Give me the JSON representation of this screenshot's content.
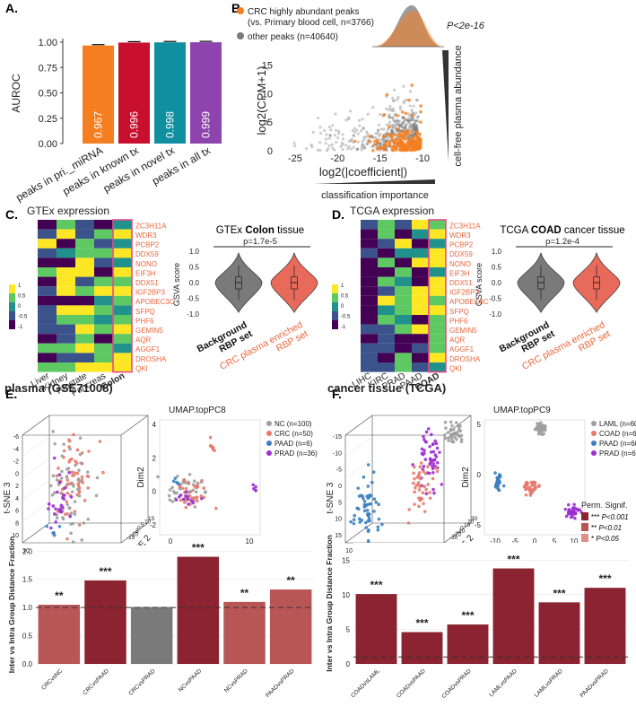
{
  "panels": {
    "A": "A.",
    "B": "B.",
    "C": "C.",
    "D": "D.",
    "E": "E.",
    "F": "F."
  },
  "colors": {
    "orange": "#f47e20",
    "red": "#c8102e",
    "teal": "#0f8fa0",
    "purple": "#8e44ad",
    "salmon": "#e86a5b",
    "gray": "#7a7a7a",
    "dark_red": "#8b2330",
    "mid_red": "#b85656",
    "light_red": "#e0908a",
    "label_orange": "#e8663d",
    "nc": "#9e9e9e",
    "crc": "#e67a6b",
    "paad": "#3a7fc0",
    "prad": "#9b2fd0"
  },
  "chart_data": [
    {
      "id": "A",
      "type": "bar",
      "ylabel": "AUROC",
      "ylim": [
        0,
        1
      ],
      "yticks": [
        "0.00",
        "0.25",
        "0.50",
        "0.75",
        "1.00"
      ],
      "categories": [
        "peaks in pri._miRNA",
        "peaks in known tx",
        "peaks in novel tx",
        "peaks in all tx"
      ],
      "values": [
        0.967,
        0.996,
        0.998,
        0.999
      ],
      "labels": [
        "0.967",
        "0.996",
        "0.998",
        "0.999"
      ]
    },
    {
      "id": "B",
      "type": "scatter",
      "legend": [
        "CRC highly abundant peaks",
        "(vs. Primary blood cell, n=3766)",
        "other peaks (n=40640)"
      ],
      "pvalue": "P<2e-16",
      "xlabel": "log2(|coefficient|)",
      "ylabel": "log2(CPM+1)",
      "xticks": [
        "-25",
        "-20",
        "-15",
        "-10"
      ],
      "yticks": [
        "0",
        "5",
        "10",
        "15"
      ],
      "xlim": [
        -27,
        -8
      ],
      "ylim": [
        0,
        17
      ],
      "side_label": "cell-free plasma abundance",
      "bottom_label": "classification importance"
    },
    {
      "id": "C_heat",
      "type": "heatmap",
      "title": "GTEx expression",
      "columns": [
        "Liver",
        "Kidney",
        "Prostate",
        "Pancreas",
        "Colon"
      ],
      "highlight_column": "Colon",
      "rows": [
        "ZC3H11A",
        "WDR3",
        "PCBP2",
        "DDX59",
        "NONO",
        "EIF3H",
        "DDX51",
        "IGF2BP3",
        "APOBEC3C",
        "SFPQ",
        "PHF6",
        "GEMIN5",
        "AQR",
        "AGGF1",
        "DROSHA",
        "QKI"
      ],
      "legend_ticks": [
        "1",
        "0.5",
        "0",
        "-0.5",
        "-1"
      ]
    },
    {
      "id": "C_violin",
      "type": "violin",
      "title_prefix": "GTEx ",
      "title_bold": "Colon",
      "title_suffix": " tissue",
      "ylabel": "GSVA score",
      "yticks": [
        "-1.0",
        "-0.5",
        "0.0",
        "0.5",
        "1.0"
      ],
      "pvalue": "p=1.7e-5",
      "groups": [
        "Background RBP set",
        "CRC plasma enriched RBP set"
      ],
      "group_lines": [
        [
          "Background",
          "RBP set"
        ],
        [
          "CRC plasma enriched",
          "RBP set"
        ]
      ]
    },
    {
      "id": "D_heat",
      "type": "heatmap",
      "title": "TCGA expression",
      "columns": [
        "LIHC",
        "KIRC",
        "PRAD",
        "PAAD",
        "COAD"
      ],
      "highlight_column": "COAD",
      "rows": [
        "ZC3H11A",
        "WDR3",
        "PCBP2",
        "DDX59",
        "NONO",
        "EIF3H",
        "DDX51",
        "IGF2BP3",
        "APOBEC3C",
        "SFPQ",
        "PHF6",
        "GEMIN5",
        "AQR",
        "AGGF1",
        "DROSHA",
        "QKI"
      ],
      "legend_ticks": [
        "1",
        "0.5",
        "0",
        "-0.5",
        "-1"
      ]
    },
    {
      "id": "D_violin",
      "type": "violin",
      "title_prefix": "TCGA ",
      "title_bold": "COAD",
      "title_suffix": " cancer tissue",
      "ylabel": "GSVA score",
      "yticks": [
        "-1.0",
        "-0.5",
        "0.0",
        "0.5",
        "1.0"
      ],
      "pvalue": "p=1.2e-4",
      "groups": [
        "Background RBP set",
        "CRC plasma enriched RBP set"
      ],
      "group_lines": [
        [
          "Background",
          "RBP set"
        ],
        [
          "CRC plasma enriched",
          "RBP set"
        ]
      ]
    },
    {
      "id": "E_tsne",
      "type": "scatter",
      "title": "plasma (GSE71008)",
      "axes": [
        "t-SNE 1",
        "t-SNE 2",
        "t-SNE 3"
      ],
      "xticks": [
        "10",
        "5",
        "0",
        "-5",
        "-10",
        "-15"
      ],
      "zticks": [
        "10",
        "8",
        "6",
        "4",
        "2",
        "0",
        "-2",
        "-4",
        "-6"
      ],
      "yticks": [
        "-15",
        "-10",
        "-5",
        "0",
        "5",
        "10",
        "15"
      ]
    },
    {
      "id": "E_umap",
      "type": "scatter",
      "title": "UMAP.topPC8",
      "xlabel": "Dim1",
      "ylabel": "Dim2",
      "xticks": [
        "0",
        "10"
      ],
      "yticks": [
        "-2",
        "0",
        "2",
        "4"
      ],
      "legend": [
        "NC (n=100)",
        "CRC (n=50)",
        "PAAD (n=6)",
        "PRAD (n=36)"
      ]
    },
    {
      "id": "F_tsne",
      "type": "scatter",
      "title": "cancer tissue (TCGA)",
      "axes": [
        "t-SNE 1",
        "t-SNE 2",
        "t-SNE 3"
      ],
      "xticks": [
        "10",
        "5",
        "0",
        "-5",
        "-10",
        "-15",
        "-20"
      ],
      "zticks": [
        "15",
        "10",
        "5",
        "0",
        "-5",
        "-10",
        "-15"
      ],
      "yticks": [
        "-30",
        "-20",
        "-10",
        "0",
        "10",
        "20",
        "30"
      ]
    },
    {
      "id": "F_umap",
      "type": "scatter",
      "title": "UMAP.topPC9",
      "xlabel": "Dim1",
      "ylabel": "Dim2",
      "xticks": [
        "-10",
        "-5",
        "0",
        "5",
        "10"
      ],
      "yticks": [
        "-5",
        "0",
        "5"
      ],
      "legend": [
        "LAML (n=60)",
        "COAD (n=60)",
        "PAAD (n=60)",
        "PRAD (n=60)"
      ]
    },
    {
      "id": "E_bar",
      "type": "bar",
      "ylabel": "Inter vs Intra Group Distance Fraction",
      "ylim": [
        0,
        2.1
      ],
      "yticks": [
        "0.0",
        "0.5",
        "1.0",
        "1.5",
        "2.0"
      ],
      "categories": [
        "CRCvsNC",
        "CRCvsPAAD",
        "CRCvsPRAD",
        "NCvsPAAD",
        "NCvsPRAD",
        "PAADvsPRAD"
      ],
      "values": [
        1.05,
        1.48,
        1.01,
        1.9,
        1.1,
        1.32
      ],
      "signif": [
        "**",
        "***",
        "",
        "***",
        "**",
        "**"
      ],
      "reference": 1.0
    },
    {
      "id": "F_bar",
      "type": "bar",
      "ylabel": "Inter vs Intra Group Distance Fraction",
      "ylim": [
        0,
        17.5
      ],
      "yticks": [
        "0",
        "5",
        "10",
        "15"
      ],
      "categories": [
        "COADvsLAML",
        "COADvsPAAD",
        "COADvsPRAD",
        "LAMLvsPAAD",
        "LAMLvsPRAD",
        "PAADvsPRAD"
      ],
      "values": [
        10.1,
        4.6,
        5.7,
        13.8,
        8.9,
        11.0
      ],
      "signif": [
        "***",
        "***",
        "***",
        "***",
        "***",
        "***"
      ],
      "reference": 1.0,
      "legend_title": "Perm. Signif.",
      "legend": [
        [
          "***",
          "P<0.001"
        ],
        [
          "**",
          "P<0.01"
        ],
        [
          "*",
          "P<0.05"
        ]
      ]
    }
  ]
}
